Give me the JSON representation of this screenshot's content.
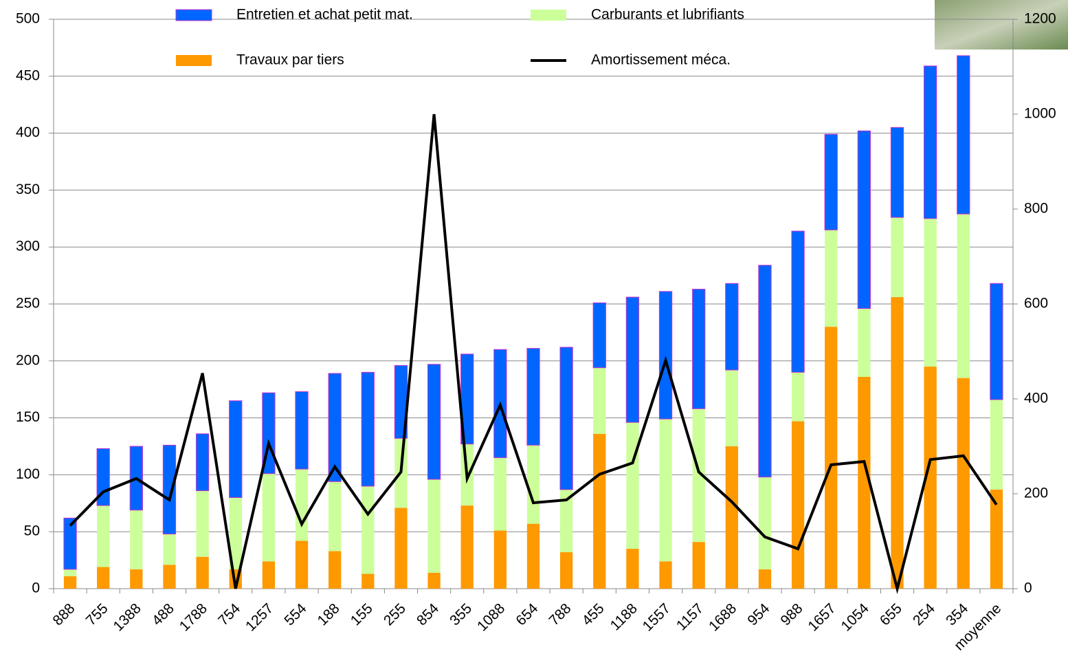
{
  "chart_data": {
    "type": "stacked-bar-line",
    "categories": [
      "888",
      "755",
      "1388",
      "488",
      "1788",
      "754",
      "1257",
      "554",
      "188",
      "155",
      "255",
      "854",
      "355",
      "1088",
      "654",
      "788",
      "455",
      "1188",
      "1557",
      "1157",
      "1688",
      "954",
      "988",
      "1657",
      "1054",
      "655",
      "254",
      "354",
      "moyenne"
    ],
    "series": [
      {
        "name": "Travaux par tiers",
        "color": "#ff9900",
        "values": [
          11,
          19,
          17,
          21,
          28,
          17,
          24,
          42,
          33,
          13,
          71,
          14,
          73,
          51,
          57,
          32,
          136,
          35,
          24,
          41,
          125,
          17,
          147,
          230,
          186,
          256,
          195,
          185,
          87
        ]
      },
      {
        "name": "Carburants et lubrifiants",
        "color": "#ccff99",
        "values": [
          6,
          54,
          52,
          27,
          58,
          63,
          77,
          63,
          61,
          77,
          61,
          82,
          54,
          64,
          69,
          55,
          58,
          111,
          125,
          117,
          67,
          81,
          43,
          85,
          60,
          70,
          130,
          144,
          79
        ]
      },
      {
        "name": "Entretien et achat petit mat.",
        "color": "#0066ff",
        "values": [
          45,
          50,
          56,
          78,
          50,
          85,
          71,
          68,
          95,
          100,
          64,
          101,
          79,
          95,
          85,
          125,
          57,
          110,
          112,
          105,
          76,
          186,
          124,
          84,
          156,
          79,
          134,
          139,
          102
        ]
      },
      {
        "name": "Amortissement méca.",
        "color": "#000000",
        "axis": "y2",
        "values": [
          133,
          204,
          232,
          187,
          454,
          0,
          306,
          136,
          257,
          157,
          246,
          1000,
          232,
          387,
          181,
          187,
          241,
          265,
          481,
          246,
          183,
          109,
          84,
          261,
          268,
          0,
          272,
          280,
          177
        ]
      }
    ],
    "ylim": [
      0,
      500
    ],
    "yticks": [
      0,
      50,
      100,
      150,
      200,
      250,
      300,
      350,
      400,
      450,
      500
    ],
    "y2lim": [
      0,
      1200
    ],
    "y2ticks": [
      0,
      200,
      400,
      600,
      800,
      1000,
      1200
    ],
    "grid": true
  }
}
